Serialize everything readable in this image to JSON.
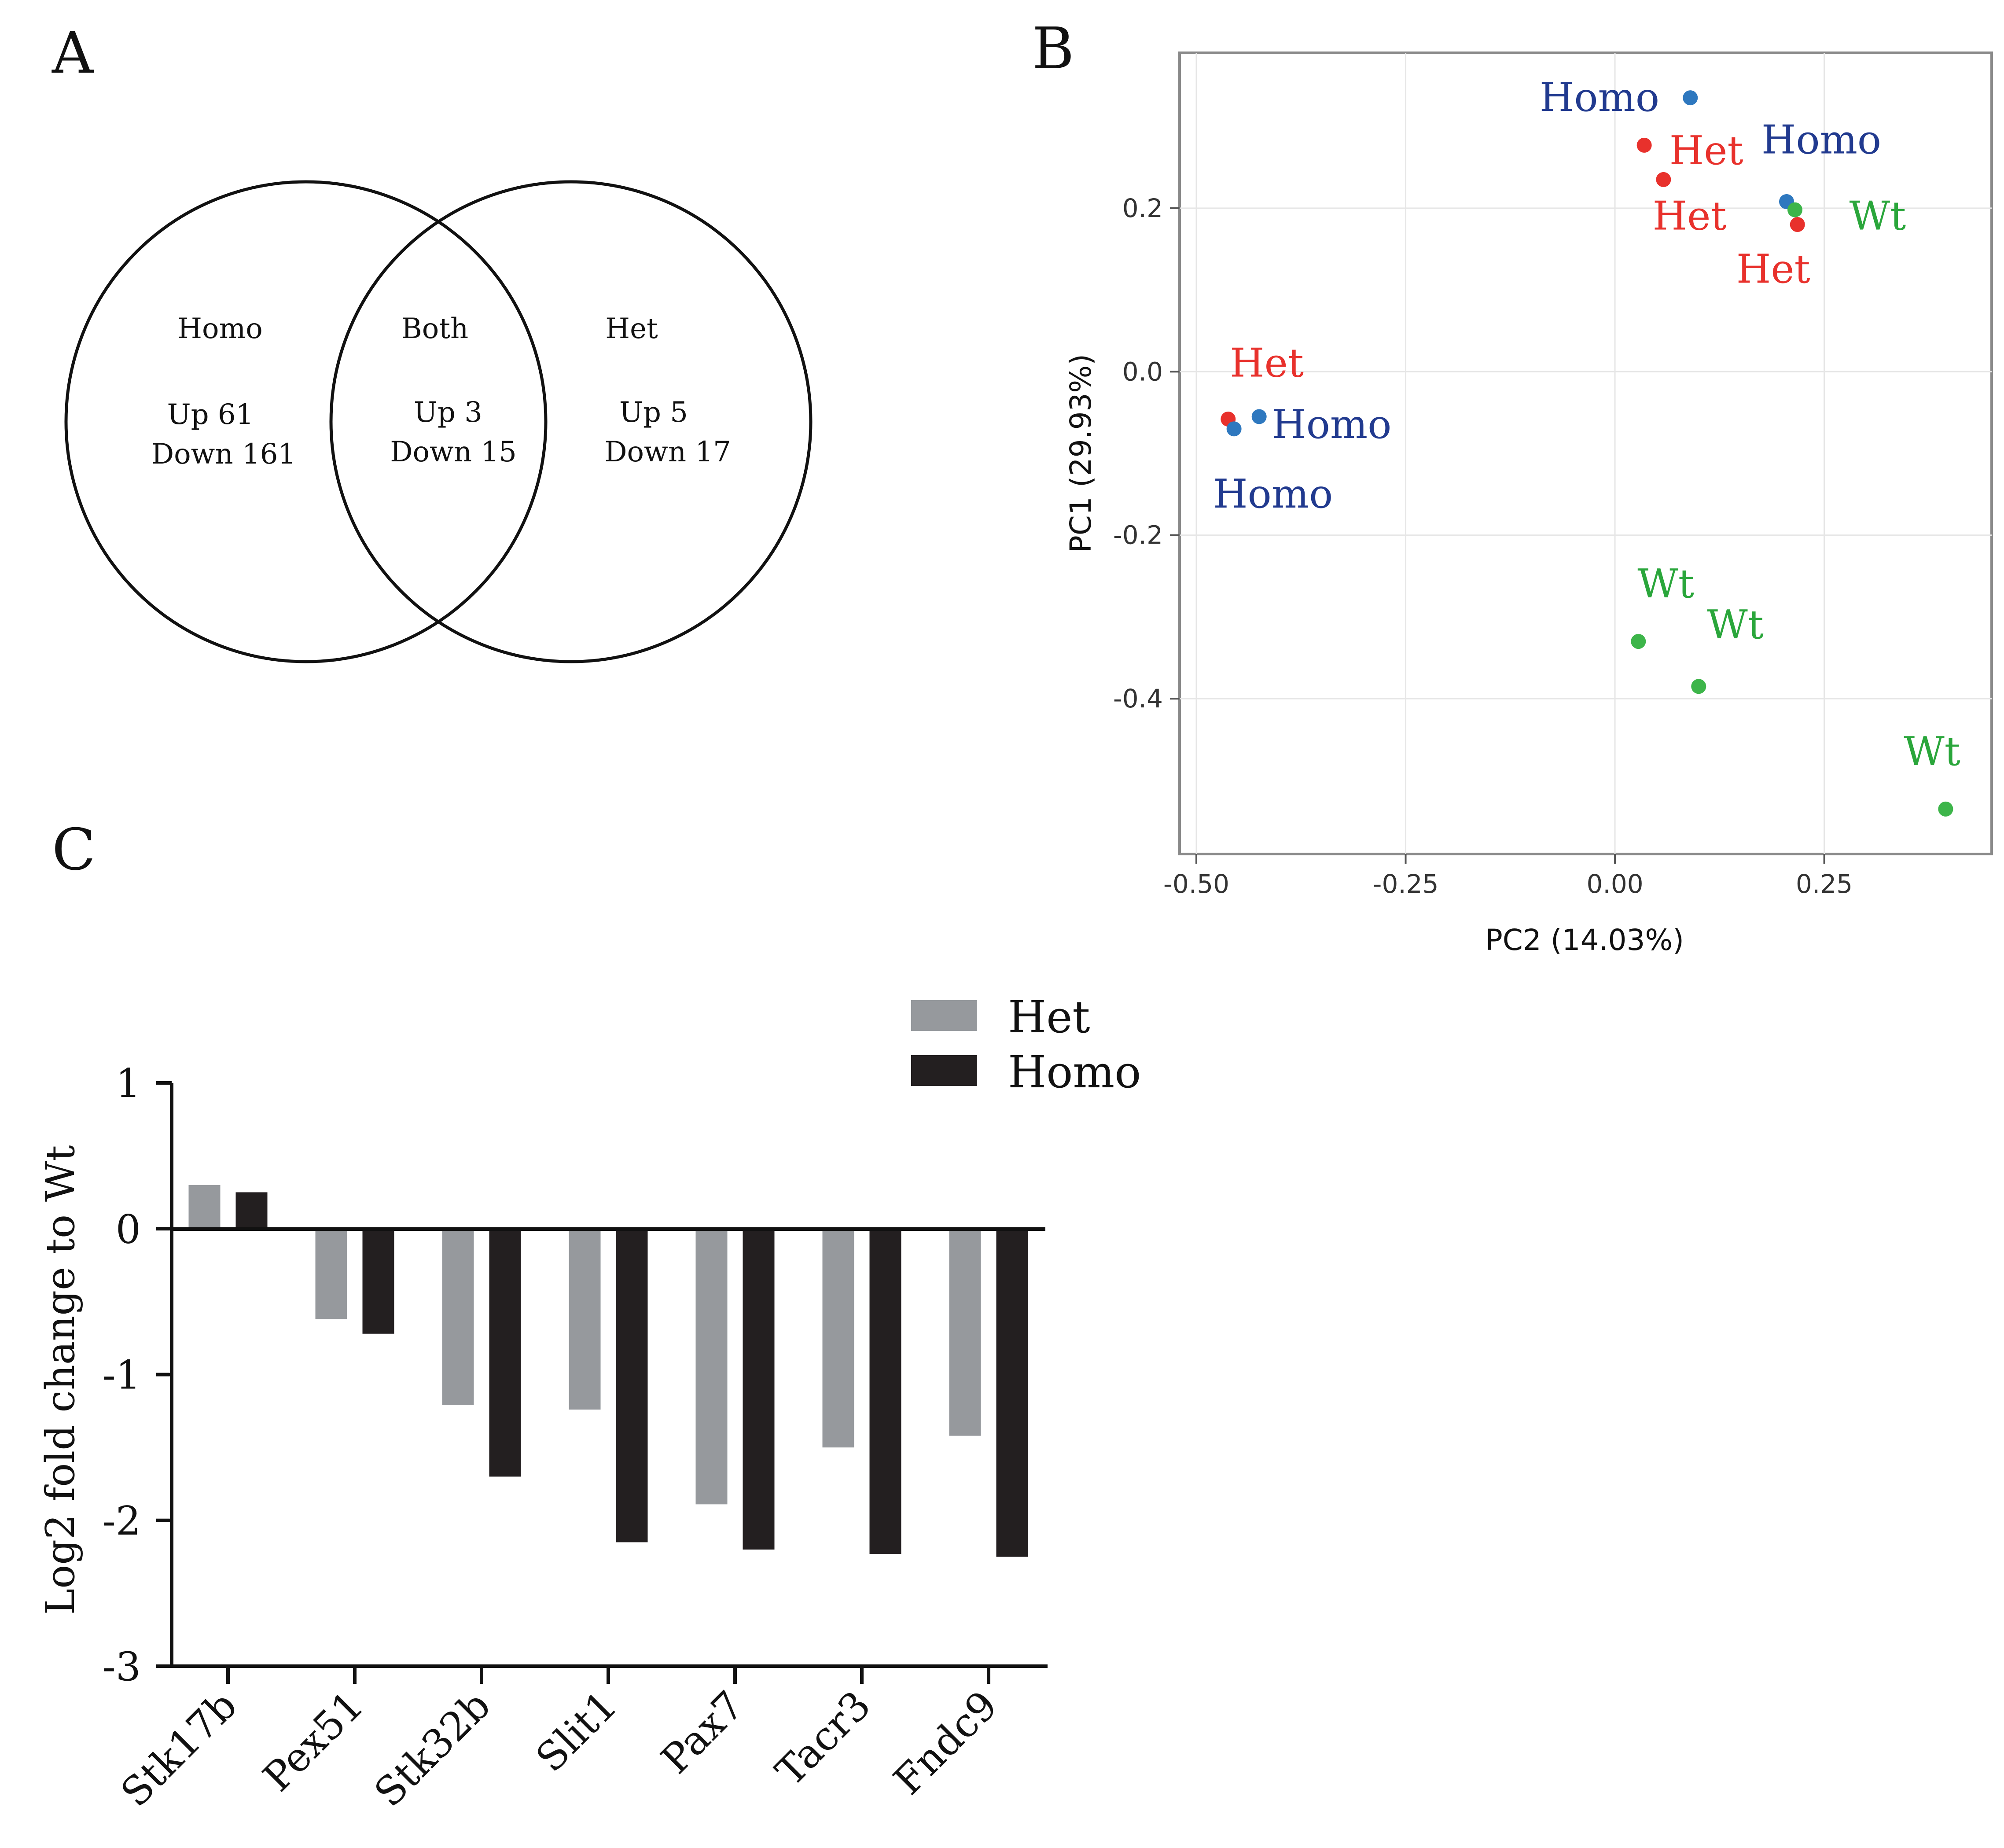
{
  "panel_labels": [
    "A",
    "B",
    "C"
  ],
  "colors": {
    "het": "#e8312c",
    "homo": "#2e78bf",
    "wt": "#3db54a",
    "homo_label": "#213a8f",
    "het_label": "#e8312c",
    "wt_label": "#2aa63b",
    "bar_het": "#96999d",
    "bar_homo": "#231f20"
  },
  "venn": {
    "left": {
      "title": "Homo",
      "up": "Up 61",
      "down": "Down 161"
    },
    "middle": {
      "title": "Both",
      "up": "Up 3",
      "down": "Down 15"
    },
    "right": {
      "title": "Het",
      "up": "Up 5",
      "down": "Down 17"
    }
  },
  "chart_data": [
    {
      "type": "scatter",
      "panel": "B",
      "xlabel": "PC2 (14.03%)",
      "ylabel": "PC1 (29.93%)",
      "xlim": [
        -0.52,
        0.45
      ],
      "ylim": [
        -0.59,
        0.39
      ],
      "xticks": [
        -0.5,
        -0.25,
        0.0,
        0.25
      ],
      "xtick_labels": [
        "-0.50",
        "-0.25",
        "0.00",
        "0.25"
      ],
      "yticks": [
        -0.4,
        -0.2,
        0.0,
        0.2
      ],
      "ytick_labels": [
        "-0.4",
        "-0.2",
        "0.0",
        "0.2"
      ],
      "grid": true,
      "points": [
        {
          "group": "Homo",
          "x": 0.09,
          "y": 0.335
        },
        {
          "group": "Het",
          "x": 0.035,
          "y": 0.277
        },
        {
          "group": "Het",
          "x": 0.058,
          "y": 0.235
        },
        {
          "group": "Homo",
          "x": 0.205,
          "y": 0.208
        },
        {
          "group": "Wt",
          "x": 0.215,
          "y": 0.198
        },
        {
          "group": "Het",
          "x": 0.218,
          "y": 0.18
        },
        {
          "group": "Het",
          "x": -0.462,
          "y": -0.058
        },
        {
          "group": "Homo",
          "x": -0.455,
          "y": -0.07
        },
        {
          "group": "Homo",
          "x": -0.425,
          "y": -0.055
        },
        {
          "group": "Wt",
          "x": 0.028,
          "y": -0.33
        },
        {
          "group": "Wt",
          "x": 0.1,
          "y": -0.385
        },
        {
          "group": "Wt",
          "x": 0.395,
          "y": -0.535
        }
      ],
      "annotations": [
        {
          "text": "Homo",
          "group": "Homo",
          "x": -0.09,
          "y": 0.335
        },
        {
          "text": "Het",
          "group": "Het",
          "x": 0.065,
          "y": 0.27
        },
        {
          "text": "Homo",
          "group": "Homo",
          "x": 0.175,
          "y": 0.283
        },
        {
          "text": "Het",
          "group": "Het",
          "x": 0.045,
          "y": 0.19
        },
        {
          "text": "Wt",
          "group": "Wt",
          "x": 0.28,
          "y": 0.19
        },
        {
          "text": "Het",
          "group": "Het",
          "x": 0.145,
          "y": 0.125
        },
        {
          "text": "Het",
          "group": "Het",
          "x": -0.46,
          "y": 0.01
        },
        {
          "text": "Homo",
          "group": "Homo",
          "x": -0.41,
          "y": -0.065
        },
        {
          "text": "Homo",
          "group": "Homo",
          "x": -0.48,
          "y": -0.15
        },
        {
          "text": "Wt",
          "group": "Wt",
          "x": 0.027,
          "y": -0.26
        },
        {
          "text": "Wt",
          "group": "Wt",
          "x": 0.11,
          "y": -0.31
        },
        {
          "text": "Wt",
          "group": "Wt",
          "x": 0.345,
          "y": -0.465
        }
      ]
    },
    {
      "type": "bar",
      "panel": "C",
      "title": "",
      "xlabel": "",
      "ylabel": "Log2  fold change  to Wt",
      "ylim": [
        -3,
        1
      ],
      "yticks": [
        1,
        0,
        -1,
        -2,
        -3
      ],
      "ytick_labels": [
        "1",
        "0",
        "-1",
        "-2",
        "-3"
      ],
      "categories": [
        "Stk17b",
        "Pex51",
        "Stk32b",
        "Slit1",
        "Pax7",
        "Tacr3",
        "Fndc9"
      ],
      "series": [
        {
          "name": "Het",
          "values": [
            0.3,
            -0.62,
            -1.21,
            -1.24,
            -1.89,
            -1.5,
            -1.42
          ]
        },
        {
          "name": "Homo",
          "values": [
            0.25,
            -0.72,
            -1.7,
            -2.15,
            -2.2,
            -2.23,
            -2.25
          ]
        }
      ],
      "legend": "top-right"
    }
  ]
}
